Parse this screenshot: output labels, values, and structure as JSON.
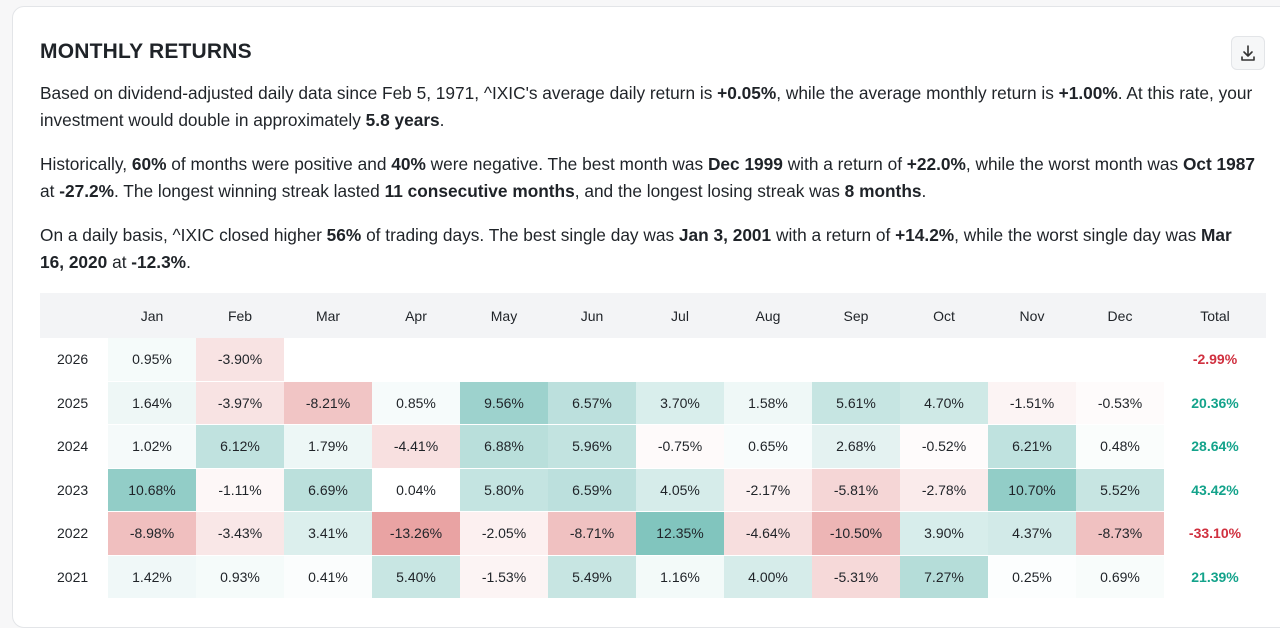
{
  "header": {
    "title": "MONTHLY RETURNS"
  },
  "paragraphs": [
    [
      {
        "text": "Based on dividend-adjusted daily data since Feb 5, 1971, ^IXIC's average daily return is "
      },
      {
        "text": "+0.05%",
        "bold": true
      },
      {
        "text": ", while the average monthly return is "
      },
      {
        "text": "+1.00%",
        "bold": true
      },
      {
        "text": ". At this rate, your investment would double in approximately "
      },
      {
        "text": "5.8 years",
        "bold": true
      },
      {
        "text": "."
      }
    ],
    [
      {
        "text": "Historically, "
      },
      {
        "text": "60%",
        "bold": true
      },
      {
        "text": " of months were positive and "
      },
      {
        "text": "40%",
        "bold": true
      },
      {
        "text": " were negative. The best month was "
      },
      {
        "text": "Dec 1999",
        "bold": true
      },
      {
        "text": " with a return of "
      },
      {
        "text": "+22.0%",
        "bold": true
      },
      {
        "text": ", while the worst month was "
      },
      {
        "text": "Oct 1987",
        "bold": true
      },
      {
        "text": " at "
      },
      {
        "text": "-27.2%",
        "bold": true
      },
      {
        "text": ". The longest winning streak lasted "
      },
      {
        "text": "11 consecutive months",
        "bold": true
      },
      {
        "text": ", and the longest losing streak was "
      },
      {
        "text": "8 months",
        "bold": true
      },
      {
        "text": "."
      }
    ],
    [
      {
        "text": "On a daily basis, ^IXIC closed higher "
      },
      {
        "text": "56%",
        "bold": true
      },
      {
        "text": " of trading days. The best single day was "
      },
      {
        "text": "Jan 3, 2001",
        "bold": true
      },
      {
        "text": " with a return of "
      },
      {
        "text": "+14.2%",
        "bold": true
      },
      {
        "text": ", while the worst single day was "
      },
      {
        "text": "Mar 16, 2020",
        "bold": true
      },
      {
        "text": " at "
      },
      {
        "text": "-12.3%",
        "bold": true
      },
      {
        "text": "."
      }
    ]
  ],
  "table": {
    "columns": [
      "Jan",
      "Feb",
      "Mar",
      "Apr",
      "May",
      "Jun",
      "Jul",
      "Aug",
      "Sep",
      "Oct",
      "Nov",
      "Dec",
      "Total"
    ],
    "rows": [
      {
        "year": "2026",
        "months": [
          "0.95%",
          "-3.90%"
        ],
        "total": "-2.99%"
      },
      {
        "year": "2025",
        "months": [
          "1.64%",
          "-3.97%",
          "-8.21%",
          "0.85%",
          "9.56%",
          "6.57%",
          "3.70%",
          "1.58%",
          "5.61%",
          "4.70%",
          "-1.51%",
          "-0.53%"
        ],
        "total": "20.36%"
      },
      {
        "year": "2024",
        "months": [
          "1.02%",
          "6.12%",
          "1.79%",
          "-4.41%",
          "6.88%",
          "5.96%",
          "-0.75%",
          "0.65%",
          "2.68%",
          "-0.52%",
          "6.21%",
          "0.48%"
        ],
        "total": "28.64%"
      },
      {
        "year": "2023",
        "months": [
          "10.68%",
          "-1.11%",
          "6.69%",
          "0.04%",
          "5.80%",
          "6.59%",
          "4.05%",
          "-2.17%",
          "-5.81%",
          "-2.78%",
          "10.70%",
          "5.52%"
        ],
        "total": "43.42%"
      },
      {
        "year": "2022",
        "months": [
          "-8.98%",
          "-3.43%",
          "3.41%",
          "-13.26%",
          "-2.05%",
          "-8.71%",
          "12.35%",
          "-4.64%",
          "-10.50%",
          "3.90%",
          "4.37%",
          "-8.73%"
        ],
        "total": "-33.10%"
      },
      {
        "year": "2021",
        "months": [
          "1.42%",
          "0.93%",
          "0.41%",
          "5.40%",
          "-1.53%",
          "5.49%",
          "1.16%",
          "4.00%",
          "-5.31%",
          "7.27%",
          "0.25%",
          "0.69%"
        ],
        "total": "21.39%"
      }
    ]
  }
}
